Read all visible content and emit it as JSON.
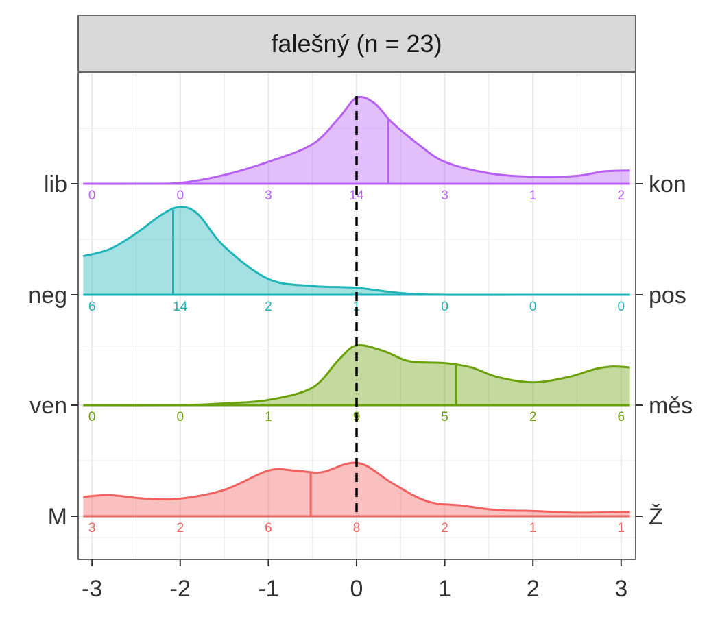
{
  "chart_data": {
    "type": "density-ridgeline",
    "title": "falešný (n = 23)",
    "xlabel": "",
    "ylabel": "",
    "xlim": [
      -3.1,
      3.1
    ],
    "x_ticks": [
      -3,
      -2,
      -1,
      0,
      1,
      2,
      3
    ],
    "x_tick_labels": [
      "-3",
      "-2",
      "-1",
      "0",
      "1",
      "2",
      "3"
    ],
    "reference_line_x": 0,
    "grid": true,
    "count_positions": [
      -3,
      -2,
      -1,
      0,
      1,
      2,
      3
    ],
    "series": [
      {
        "left_label": "lib",
        "right_label": "kon",
        "color": "#B660F5",
        "counts": [
          "0",
          "0",
          "3",
          "14",
          "3",
          "1",
          "2"
        ],
        "mean": 0.36,
        "density_x": [
          -3.1,
          -2.5,
          -2.0,
          -1.5,
          -1.0,
          -0.5,
          -0.2,
          0.0,
          0.2,
          0.4,
          0.7,
          1.0,
          1.5,
          2.0,
          2.5,
          2.8,
          3.1
        ],
        "density_y": [
          0.0,
          0.0,
          0.01,
          0.1,
          0.25,
          0.45,
          0.75,
          0.98,
          0.92,
          0.7,
          0.45,
          0.25,
          0.12,
          0.08,
          0.09,
          0.14,
          0.15
        ]
      },
      {
        "left_label": "neg",
        "right_label": "pos",
        "color": "#1FB5B8",
        "counts": [
          "6",
          "14",
          "2",
          "1",
          "0",
          "0",
          "0"
        ],
        "mean": -2.08,
        "density_x": [
          -3.1,
          -2.8,
          -2.5,
          -2.2,
          -2.0,
          -1.8,
          -1.5,
          -1.0,
          -0.5,
          0.0,
          0.5,
          1.0,
          2.0,
          3.1
        ],
        "density_y": [
          0.44,
          0.52,
          0.7,
          0.92,
          1.0,
          0.92,
          0.55,
          0.18,
          0.1,
          0.08,
          0.02,
          0.0,
          0.0,
          0.0
        ]
      },
      {
        "left_label": "ven",
        "right_label": "měs",
        "color": "#6AA10A",
        "counts": [
          "0",
          "0",
          "1",
          "9",
          "5",
          "2",
          "6"
        ],
        "mean": 1.13,
        "density_x": [
          -3.1,
          -2.0,
          -1.5,
          -1.0,
          -0.5,
          -0.2,
          0.0,
          0.3,
          0.6,
          1.0,
          1.3,
          1.6,
          2.0,
          2.4,
          2.7,
          2.9,
          3.1
        ],
        "density_y": [
          0.0,
          0.0,
          0.02,
          0.06,
          0.2,
          0.52,
          0.68,
          0.62,
          0.5,
          0.48,
          0.43,
          0.32,
          0.26,
          0.32,
          0.41,
          0.44,
          0.43
        ]
      },
      {
        "left_label": "M",
        "right_label": "Ž",
        "color": "#F0625F",
        "counts": [
          "3",
          "2",
          "6",
          "8",
          "2",
          "1",
          "1"
        ],
        "mean": -0.52,
        "density_x": [
          -3.1,
          -2.8,
          -2.4,
          -2.0,
          -1.5,
          -1.0,
          -0.7,
          -0.4,
          -0.1,
          0.1,
          0.4,
          0.8,
          1.2,
          1.6,
          2.0,
          2.5,
          3.1
        ],
        "density_y": [
          0.22,
          0.24,
          0.2,
          0.2,
          0.3,
          0.52,
          0.52,
          0.5,
          0.6,
          0.58,
          0.38,
          0.17,
          0.12,
          0.07,
          0.06,
          0.04,
          0.05
        ]
      }
    ]
  }
}
